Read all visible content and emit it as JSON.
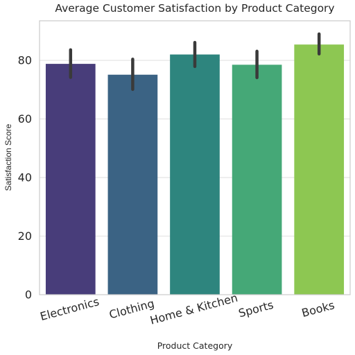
{
  "chart_data": {
    "type": "bar",
    "title": "Average Customer Satisfaction by Product Category",
    "xlabel": "Product Category",
    "ylabel": "Satisfaction Score",
    "categories": [
      "Electronics",
      "Clothing",
      "Home & Kitchen",
      "Sports",
      "Books"
    ],
    "values": [
      78.8,
      75.1,
      82.0,
      78.5,
      85.4
    ],
    "error_low": [
      74.2,
      70.1,
      77.9,
      74.1,
      82.2
    ],
    "error_high": [
      83.6,
      80.4,
      86.1,
      83.1,
      89.0
    ],
    "colors": [
      "#483d7a",
      "#3b6384",
      "#2e857e",
      "#45a877",
      "#8dc752"
    ],
    "error_bar_color": "#3a3a3a",
    "ylim": [
      0,
      93.5
    ],
    "yticks": [
      "0",
      "20",
      "40",
      "60",
      "80"
    ],
    "grid": true,
    "grid_axis": "y"
  }
}
